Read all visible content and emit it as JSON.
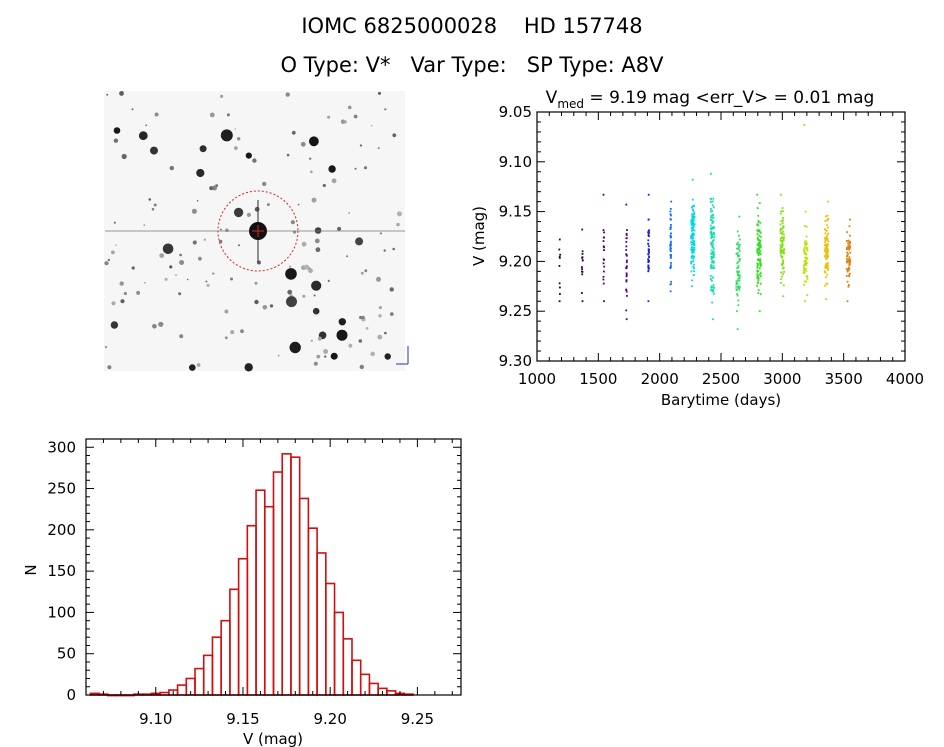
{
  "header": {
    "title_line1": "IOMC 6825000028    HD 157748",
    "otype_label": "O Type: V*",
    "vartype_label": "Var Type:",
    "sptype_label": "SP Type: A8V"
  },
  "finder_image": {
    "description_tag": "star-field-thumbnail"
  },
  "colors": {
    "axis": "#000000",
    "hist_bar": "#d01010",
    "finder_circle": "#e02020",
    "finder_bg": "#f6f6f6"
  },
  "chart_data": [
    {
      "type": "scatter",
      "title_prefix": "V",
      "title_subscript": "med",
      "title_rest": " = 9.19 mag <err_V> = 0.01 mag",
      "xlabel": "Barytime (days)",
      "ylabel": "V (mag)",
      "xlim": [
        1000,
        4000
      ],
      "ylim": [
        9.3,
        9.05
      ],
      "x_ticks": [
        1000,
        1500,
        2000,
        2500,
        3000,
        3500,
        4000
      ],
      "y_ticks": [
        9.05,
        9.1,
        9.15,
        9.2,
        9.25,
        9.3
      ],
      "x_tick_labels": [
        "1000",
        "1500",
        "2000",
        "2500",
        "3000",
        "3500",
        "4000"
      ],
      "y_tick_labels": [
        "9.05",
        "9.10",
        "9.15",
        "9.20",
        "9.25",
        "9.30"
      ],
      "clusters": [
        {
          "x": 1185,
          "ymin": 9.178,
          "ymax": 9.24,
          "n": 10,
          "color": "#2a0030"
        },
        {
          "x": 1370,
          "ymin": 9.168,
          "ymax": 9.24,
          "n": 14,
          "color": "#3a0045"
        },
        {
          "x": 1545,
          "ymin": 9.133,
          "ymax": 9.24,
          "n": 18,
          "color": "#4a0058"
        },
        {
          "x": 1730,
          "ymin": 9.143,
          "ymax": 9.258,
          "n": 30,
          "color": "#560090"
        },
        {
          "x": 1910,
          "ymin": 9.133,
          "ymax": 9.24,
          "n": 40,
          "color": "#2020d0"
        },
        {
          "x": 2090,
          "ymin": 9.14,
          "ymax": 9.23,
          "n": 45,
          "color": "#1070ff"
        },
        {
          "x": 2270,
          "ymin": 9.118,
          "ymax": 9.225,
          "n": 120,
          "color": "#00d8e8"
        },
        {
          "x": 2430,
          "ymin": 9.112,
          "ymax": 9.258,
          "n": 110,
          "color": "#10e0b0"
        },
        {
          "x": 2640,
          "ymin": 9.155,
          "ymax": 9.268,
          "n": 60,
          "color": "#30e060"
        },
        {
          "x": 2810,
          "ymin": 9.133,
          "ymax": 9.25,
          "n": 100,
          "color": "#30e020"
        },
        {
          "x": 3000,
          "ymin": 9.133,
          "ymax": 9.235,
          "n": 80,
          "color": "#80e010"
        },
        {
          "x": 3190,
          "ymin": 9.15,
          "ymax": 9.24,
          "n": 60,
          "color": "#c0e000"
        },
        {
          "x": 3360,
          "ymin": 9.14,
          "ymax": 9.238,
          "n": 90,
          "color": "#f0c000"
        },
        {
          "x": 3540,
          "ymin": 9.158,
          "ymax": 9.24,
          "n": 60,
          "color": "#e08010"
        }
      ],
      "outliers": [
        {
          "x": 3180,
          "y": 9.063,
          "color": "#b8e000"
        }
      ]
    },
    {
      "type": "bar",
      "subtype": "histogram",
      "xlabel": "V (mag)",
      "ylabel": "N",
      "xlim": [
        9.06,
        9.275
      ],
      "ylim": [
        0,
        310
      ],
      "bin_width": 0.005,
      "bin_start": 9.0625,
      "values": [
        2,
        1,
        0,
        0,
        0,
        1,
        1,
        2,
        3,
        6,
        12,
        20,
        32,
        48,
        70,
        90,
        128,
        165,
        205,
        248,
        228,
        270,
        292,
        288,
        238,
        202,
        172,
        135,
        100,
        68,
        42,
        25,
        14,
        8,
        5,
        2,
        1
      ],
      "x_ticks": [
        9.1,
        9.15,
        9.2,
        9.25
      ],
      "x_tick_labels": [
        "9.10",
        "9.15",
        "9.20",
        "9.25"
      ],
      "y_ticks": [
        0,
        50,
        100,
        150,
        200,
        250,
        300
      ],
      "y_tick_labels": [
        "0",
        "50",
        "100",
        "150",
        "200",
        "250",
        "300"
      ]
    }
  ]
}
